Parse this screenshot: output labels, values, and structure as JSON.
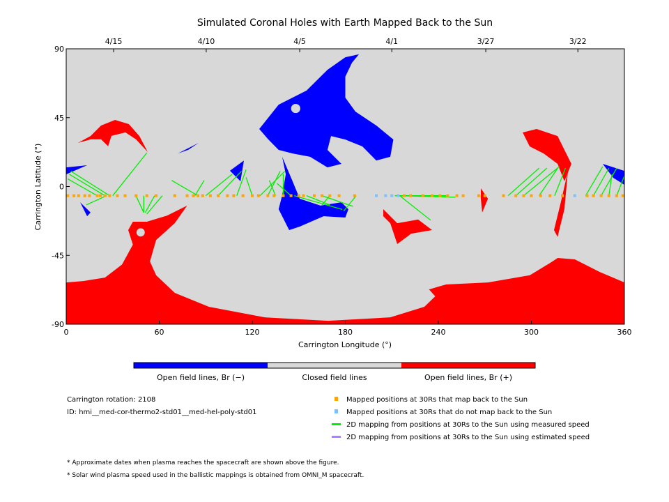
{
  "chart_data": {
    "type": "map",
    "title": "Simulated Coronal Holes with Earth Mapped Back to the Sun",
    "xlabel": "Carrington Longitude (°)",
    "ylabel": "Carrington Latitude (°)",
    "xlim": [
      0,
      360
    ],
    "ylim": [
      -90,
      90
    ],
    "xticks": [
      0,
      60,
      120,
      180,
      240,
      300,
      360
    ],
    "xtick_labels": [
      "0",
      "60",
      "120",
      "180",
      "240",
      "300",
      "360"
    ],
    "yticks": [
      90,
      45,
      0,
      -45,
      -90
    ],
    "ytick_labels": [
      "90",
      "45",
      "0",
      "-45",
      "-90"
    ],
    "top_dates": [
      {
        "lon": 30.6,
        "label": "4/15"
      },
      {
        "lon": 90.3,
        "label": "4/10"
      },
      {
        "lon": 150.6,
        "label": "4/5"
      },
      {
        "lon": 210,
        "label": "4/1"
      },
      {
        "lon": 270.6,
        "label": "3/27"
      },
      {
        "lon": 330,
        "label": "3/22"
      }
    ],
    "colors": {
      "negative": "#0000ff",
      "closed": "#d8d8d8",
      "positive": "#ff0000",
      "mapped": "#ffa500",
      "unmapped": "#80bfff",
      "measured": "#00ee00",
      "estimated": "#b080ff"
    },
    "regions": [
      {
        "polarity": "positive",
        "points": [
          [
            0,
            -62.7
          ],
          [
            11,
            -61.8
          ],
          [
            25,
            -59.5
          ],
          [
            36,
            -51
          ],
          [
            43,
            -38
          ],
          [
            40,
            -28.5
          ],
          [
            43,
            -23
          ],
          [
            52,
            -23
          ],
          [
            65,
            -19
          ],
          [
            78,
            -12.5
          ],
          [
            70,
            -24
          ],
          [
            58,
            -35
          ],
          [
            54,
            -49
          ],
          [
            58,
            -58
          ],
          [
            70,
            -69.5
          ],
          [
            92,
            -78.6
          ],
          [
            128,
            -85.5
          ],
          [
            169,
            -87.8
          ],
          [
            209,
            -85.5
          ],
          [
            231,
            -78.6
          ],
          [
            238,
            -71.8
          ],
          [
            234,
            -67.3
          ],
          [
            245,
            -64
          ],
          [
            272,
            -62.7
          ],
          [
            299,
            -58
          ],
          [
            312,
            -50
          ],
          [
            317,
            -46.7
          ],
          [
            328,
            -47.6
          ],
          [
            344,
            -55.8
          ],
          [
            360,
            -62.7
          ],
          [
            360,
            -90
          ],
          [
            0,
            -90
          ]
        ]
      },
      {
        "polarity": "positive",
        "points": [
          [
            7.6,
            28.5
          ],
          [
            15.7,
            33
          ],
          [
            22.5,
            39.9
          ],
          [
            31.5,
            43.5
          ],
          [
            40.4,
            40.8
          ],
          [
            47.2,
            33
          ],
          [
            52.6,
            22.5
          ],
          [
            45,
            30.8
          ],
          [
            38.2,
            35.4
          ],
          [
            29.2,
            33.1
          ],
          [
            27,
            26.3
          ],
          [
            22.5,
            30.8
          ],
          [
            15.7,
            30.8
          ]
        ]
      },
      {
        "polarity": "negative",
        "points": [
          [
            124.5,
            37.6
          ],
          [
            137,
            53.5
          ],
          [
            155,
            62.7
          ],
          [
            168.5,
            76.3
          ],
          [
            180,
            84.5
          ],
          [
            188.8,
            86.4
          ],
          [
            184.3,
            80.9
          ],
          [
            180,
            71.8
          ],
          [
            180,
            58.1
          ],
          [
            186.5,
            49
          ],
          [
            200,
            39.9
          ],
          [
            211,
            30.7
          ],
          [
            209,
            19.4
          ],
          [
            200,
            17
          ],
          [
            191,
            26.2
          ],
          [
            180,
            30.7
          ],
          [
            170.8,
            33
          ],
          [
            168.5,
            23.9
          ],
          [
            177.5,
            14.8
          ],
          [
            168.5,
            12.5
          ],
          [
            157.3,
            19.4
          ],
          [
            146,
            21.6
          ],
          [
            137,
            23.9
          ],
          [
            130.3,
            30.8
          ]
        ]
      },
      {
        "polarity": "negative",
        "points": [
          [
            139.3,
            19.4
          ],
          [
            146,
            3.4
          ],
          [
            150.6,
            -8
          ],
          [
            164,
            -12.5
          ],
          [
            177.5,
            -10.3
          ],
          [
            182,
            -14.8
          ],
          [
            180,
            -20.3
          ],
          [
            166,
            -19.4
          ],
          [
            150.6,
            -26.2
          ],
          [
            143.8,
            -28.5
          ],
          [
            137,
            -14.8
          ],
          [
            139.3,
            -5.7
          ],
          [
            141.6,
            8
          ]
        ]
      },
      {
        "polarity": "positive",
        "points": [
          [
            294.4,
            35.3
          ],
          [
            303.4,
            37.6
          ],
          [
            316.9,
            33
          ],
          [
            325.8,
            14.8
          ],
          [
            321.3,
            3.4
          ],
          [
            316.9,
            14.8
          ],
          [
            307.9,
            21.6
          ],
          [
            298.9,
            26.2
          ]
        ]
      },
      {
        "polarity": "positive",
        "points": [
          [
            323.6,
            10.2
          ],
          [
            321.3,
            -14.8
          ],
          [
            316.9,
            -33
          ],
          [
            314.6,
            -28.5
          ],
          [
            319,
            -10.3
          ]
        ]
      },
      {
        "polarity": "positive",
        "points": [
          [
            204.5,
            -14.8
          ],
          [
            213.5,
            -24
          ],
          [
            227,
            -21.6
          ],
          [
            236,
            -28.5
          ],
          [
            222.5,
            -30.8
          ],
          [
            213.5,
            -37.6
          ],
          [
            209,
            -24
          ],
          [
            204.5,
            -19.4
          ]
        ]
      },
      {
        "polarity": "positive",
        "points": [
          [
            267.4,
            -1.2
          ],
          [
            272,
            -8
          ],
          [
            268.3,
            -17
          ],
          [
            267.4,
            -8
          ]
        ]
      },
      {
        "polarity": "negative",
        "points": [
          [
            346,
            14.8
          ],
          [
            360,
            10.2
          ],
          [
            360,
            1.1
          ],
          [
            352.8,
            5.7
          ]
        ]
      },
      {
        "polarity": "negative",
        "points": [
          [
            0,
            12.5
          ],
          [
            13.5,
            13.9
          ],
          [
            0,
            8
          ]
        ]
      },
      {
        "polarity": "negative",
        "points": [
          [
            9,
            -10.3
          ],
          [
            15.7,
            -17
          ],
          [
            13.5,
            -19.4
          ]
        ]
      },
      {
        "polarity": "negative",
        "points": [
          [
            72,
            21.6
          ],
          [
            85.4,
            28.5
          ],
          [
            78.7,
            24
          ]
        ]
      },
      {
        "polarity": "negative",
        "points": [
          [
            105.6,
            10.3
          ],
          [
            114.6,
            17
          ],
          [
            112.4,
            3.4
          ]
        ]
      }
    ],
    "holes": [
      {
        "lon": 48,
        "lat": -30,
        "r": 2.7
      },
      {
        "lon": 148,
        "lat": 51,
        "r": 3
      }
    ],
    "foot_lat": -6,
    "mapped_lons": [
      1,
      5,
      8,
      12,
      15,
      20,
      22,
      25,
      28,
      33,
      38,
      45,
      52,
      58,
      70,
      78,
      82,
      85,
      88,
      93,
      98,
      104,
      108,
      114,
      120,
      124,
      130,
      134,
      140,
      145,
      150,
      153,
      160,
      165,
      170,
      176,
      186,
      218,
      222,
      230,
      236,
      241,
      246,
      252,
      256,
      266,
      270,
      282,
      290,
      295,
      300,
      306,
      312,
      320,
      336,
      340,
      345,
      350,
      355,
      359
    ],
    "unmapped_lons": [
      200,
      206,
      210,
      214,
      328
    ],
    "measured_lines": [
      [
        28,
        3,
        10
      ],
      [
        25,
        2,
        8
      ],
      [
        20,
        1,
        5
      ],
      [
        30,
        52,
        22
      ],
      [
        26,
        13,
        -12
      ],
      [
        45,
        50,
        -17
      ],
      [
        50,
        50,
        -17
      ],
      [
        57,
        51,
        -17
      ],
      [
        62,
        52,
        -18
      ],
      [
        85,
        68,
        4
      ],
      [
        83,
        89,
        4
      ],
      [
        90,
        107,
        8
      ],
      [
        98,
        113,
        10
      ],
      [
        110,
        116,
        11
      ],
      [
        120,
        116,
        6
      ],
      [
        125,
        141,
        10
      ],
      [
        130,
        138,
        10
      ],
      [
        135,
        131,
        4
      ],
      [
        140,
        140,
        8
      ],
      [
        145,
        136,
        2
      ],
      [
        147,
        178,
        -15
      ],
      [
        155,
        170,
        -12
      ],
      [
        165,
        185,
        -13
      ],
      [
        170,
        165,
        -12
      ],
      [
        187,
        179,
        -16
      ],
      [
        215,
        251,
        -7
      ],
      [
        212,
        245,
        -6
      ],
      [
        215,
        235,
        -22
      ],
      [
        290,
        310,
        12
      ],
      [
        285,
        305,
        12
      ],
      [
        295,
        318,
        13
      ],
      [
        305,
        317,
        12
      ],
      [
        315,
        322,
        12
      ],
      [
        335,
        346,
        13
      ],
      [
        340,
        350,
        12
      ],
      [
        345,
        355,
        12
      ],
      [
        350,
        352,
        8
      ],
      [
        355,
        360,
        7
      ]
    ],
    "colorbar_labels": [
      "Open field lines, Br (−)",
      "Closed field lines",
      "Open field lines, Br (+)"
    ],
    "info": [
      "Carrington rotation: 2108",
      "ID: hmi__med-cor-thermo2-std01__med-hel-poly-std01"
    ],
    "legend": [
      {
        "kind": "square",
        "color": "#ffa500",
        "label": "Mapped positions at 30Rs that map back to the Sun"
      },
      {
        "kind": "square",
        "color": "#80bfff",
        "label": "Mapped positions at 30Rs that do not map back to the Sun"
      },
      {
        "kind": "line",
        "color": "#00ee00",
        "label": "2D mapping from positions at 30Rs to the Sun using measured speed"
      },
      {
        "kind": "line",
        "color": "#b080ff",
        "label": "2D mapping from positions at 30Rs to the Sun using estimated speed"
      }
    ],
    "notes": [
      "* Approximate dates when plasma reaches the spacecraft are shown above the figure.",
      "* Solar wind plasma speed used in the ballistic mappings is obtained from OMNI_M spacecraft."
    ]
  }
}
